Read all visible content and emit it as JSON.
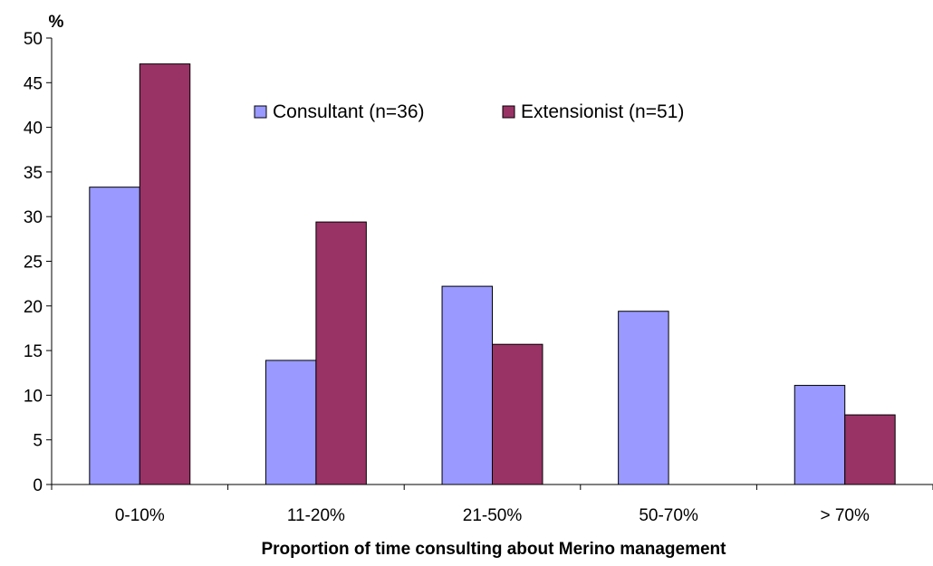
{
  "chart_data": {
    "type": "bar",
    "title": "",
    "xlabel": "Proportion of time consulting about Merino management",
    "ylabel": "%",
    "categories": [
      "0-10%",
      "11-20%",
      "21-50%",
      "50-70%",
      "> 70%"
    ],
    "series": [
      {
        "name": "Consultant (n=36)",
        "color": "#9999ff",
        "values": [
          33.3,
          13.9,
          22.2,
          19.4,
          11.1
        ]
      },
      {
        "name": "Extensionist (n=51)",
        "color": "#993366",
        "values": [
          47.1,
          29.4,
          15.7,
          0,
          7.8
        ]
      }
    ],
    "ylim": [
      0,
      50
    ],
    "yticks": [
      0,
      5,
      10,
      15,
      20,
      25,
      30,
      35,
      40,
      45,
      50
    ],
    "grid": false,
    "legend": "top-center"
  }
}
